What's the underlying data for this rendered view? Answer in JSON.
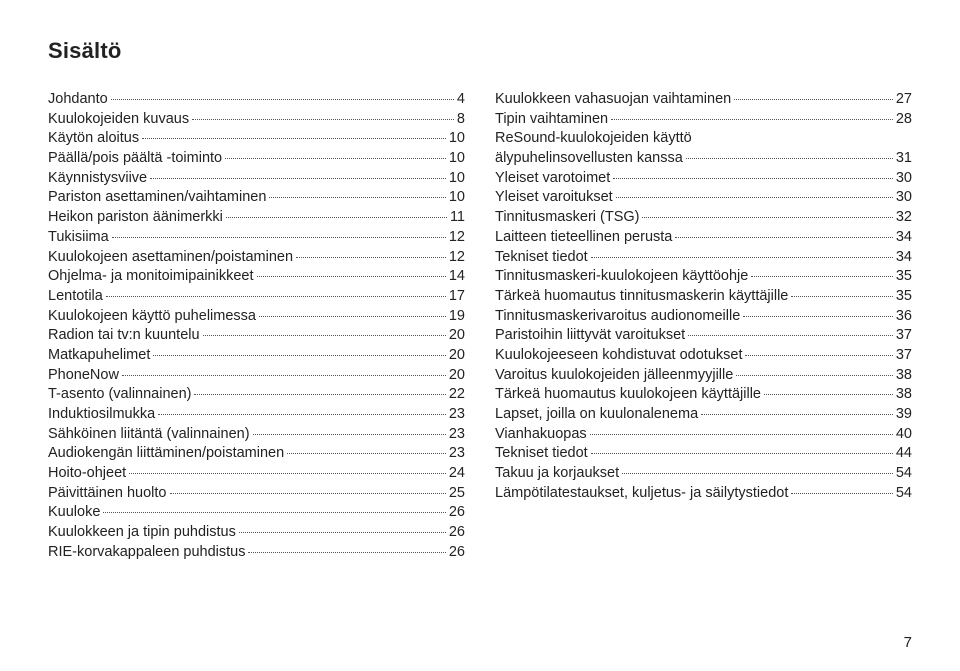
{
  "title": "Sisältö",
  "pageNumber": "7",
  "left": [
    {
      "label": "Johdanto",
      "page": "4"
    },
    {
      "label": "Kuulokojeiden kuvaus",
      "page": "8"
    },
    {
      "label": "Käytön aloitus",
      "page": "10"
    },
    {
      "label": "Päällä/pois päältä -toiminto",
      "page": "10"
    },
    {
      "label": "Käynnistysviive",
      "page": "10"
    },
    {
      "label": "Pariston asettaminen/vaihtaminen",
      "page": "10"
    },
    {
      "label": "Heikon pariston äänimerkki",
      "page": "11"
    },
    {
      "label": "Tukisiima",
      "page": "12"
    },
    {
      "label": "Kuulokojeen asettaminen/poistaminen",
      "page": "12"
    },
    {
      "label": "Ohjelma- ja monitoimipainikkeet",
      "page": "14"
    },
    {
      "label": "Lentotila",
      "page": "17"
    },
    {
      "label": "Kuulokojeen käyttö puhelimessa",
      "page": "19"
    },
    {
      "label": "Radion tai tv:n kuuntelu",
      "page": "20"
    },
    {
      "label": "Matkapuhelimet",
      "page": "20"
    },
    {
      "label": "PhoneNow",
      "page": "20"
    },
    {
      "label": "T-asento (valinnainen)",
      "page": "22"
    },
    {
      "label": "Induktiosilmukka",
      "page": "23"
    },
    {
      "label": "Sähköinen liitäntä (valinnainen)",
      "page": "23"
    },
    {
      "label": "Audiokengän liittäminen/poistaminen",
      "page": "23"
    },
    {
      "label": "Hoito-ohjeet",
      "page": "24"
    },
    {
      "label": "Päivittäinen huolto",
      "page": "25"
    },
    {
      "label": "Kuuloke",
      "page": "26"
    },
    {
      "label": "Kuulokkeen ja tipin puhdistus",
      "page": "26"
    },
    {
      "label": "RIE-korvakappaleen puhdistus",
      "page": "26"
    }
  ],
  "right": [
    {
      "label": "Kuulokkeen vahasuojan vaihtaminen",
      "page": "27"
    },
    {
      "label": "Tipin vaihtaminen",
      "page": "28"
    },
    {
      "label": "ReSound-kuulokojeiden käyttö",
      "page": ""
    },
    {
      "label": "älypuhelinsovellusten kanssa",
      "page": "31"
    },
    {
      "label": "Yleiset varotoimet",
      "page": "30"
    },
    {
      "label": "Yleiset varoitukset",
      "page": "30"
    },
    {
      "label": "Tinnitusmaskeri (TSG)",
      "page": "32"
    },
    {
      "label": "Laitteen tieteellinen perusta",
      "page": "34"
    },
    {
      "label": "Tekniset tiedot",
      "page": "34"
    },
    {
      "label": "Tinnitusmaskeri-kuulokojeen käyttöohje",
      "page": "35"
    },
    {
      "label": "Tärkeä huomautus tinnitusmaskerin käyttäjille",
      "page": "35"
    },
    {
      "label": "Tinnitusmaskerivaroitus audionomeille",
      "page": "36"
    },
    {
      "label": "Paristoihin liittyvät varoitukset",
      "page": "37"
    },
    {
      "label": "Kuulokojeeseen kohdistuvat odotukset",
      "page": "37"
    },
    {
      "label": "Varoitus kuulokojeiden jälleenmyyjille",
      "page": "38"
    },
    {
      "label": "Tärkeä huomautus kuulokojeen käyttäjille",
      "page": "38"
    },
    {
      "label": "Lapset, joilla on kuulonalenema",
      "page": "39"
    },
    {
      "label": "Vianhakuopas",
      "page": "40"
    },
    {
      "label": "Tekniset tiedot",
      "page": "44"
    },
    {
      "label": "Takuu ja korjaukset",
      "page": "54"
    },
    {
      "label": "Lämpötilatestaukset, kuljetus- ja säilytystiedot",
      "page": "54"
    }
  ]
}
